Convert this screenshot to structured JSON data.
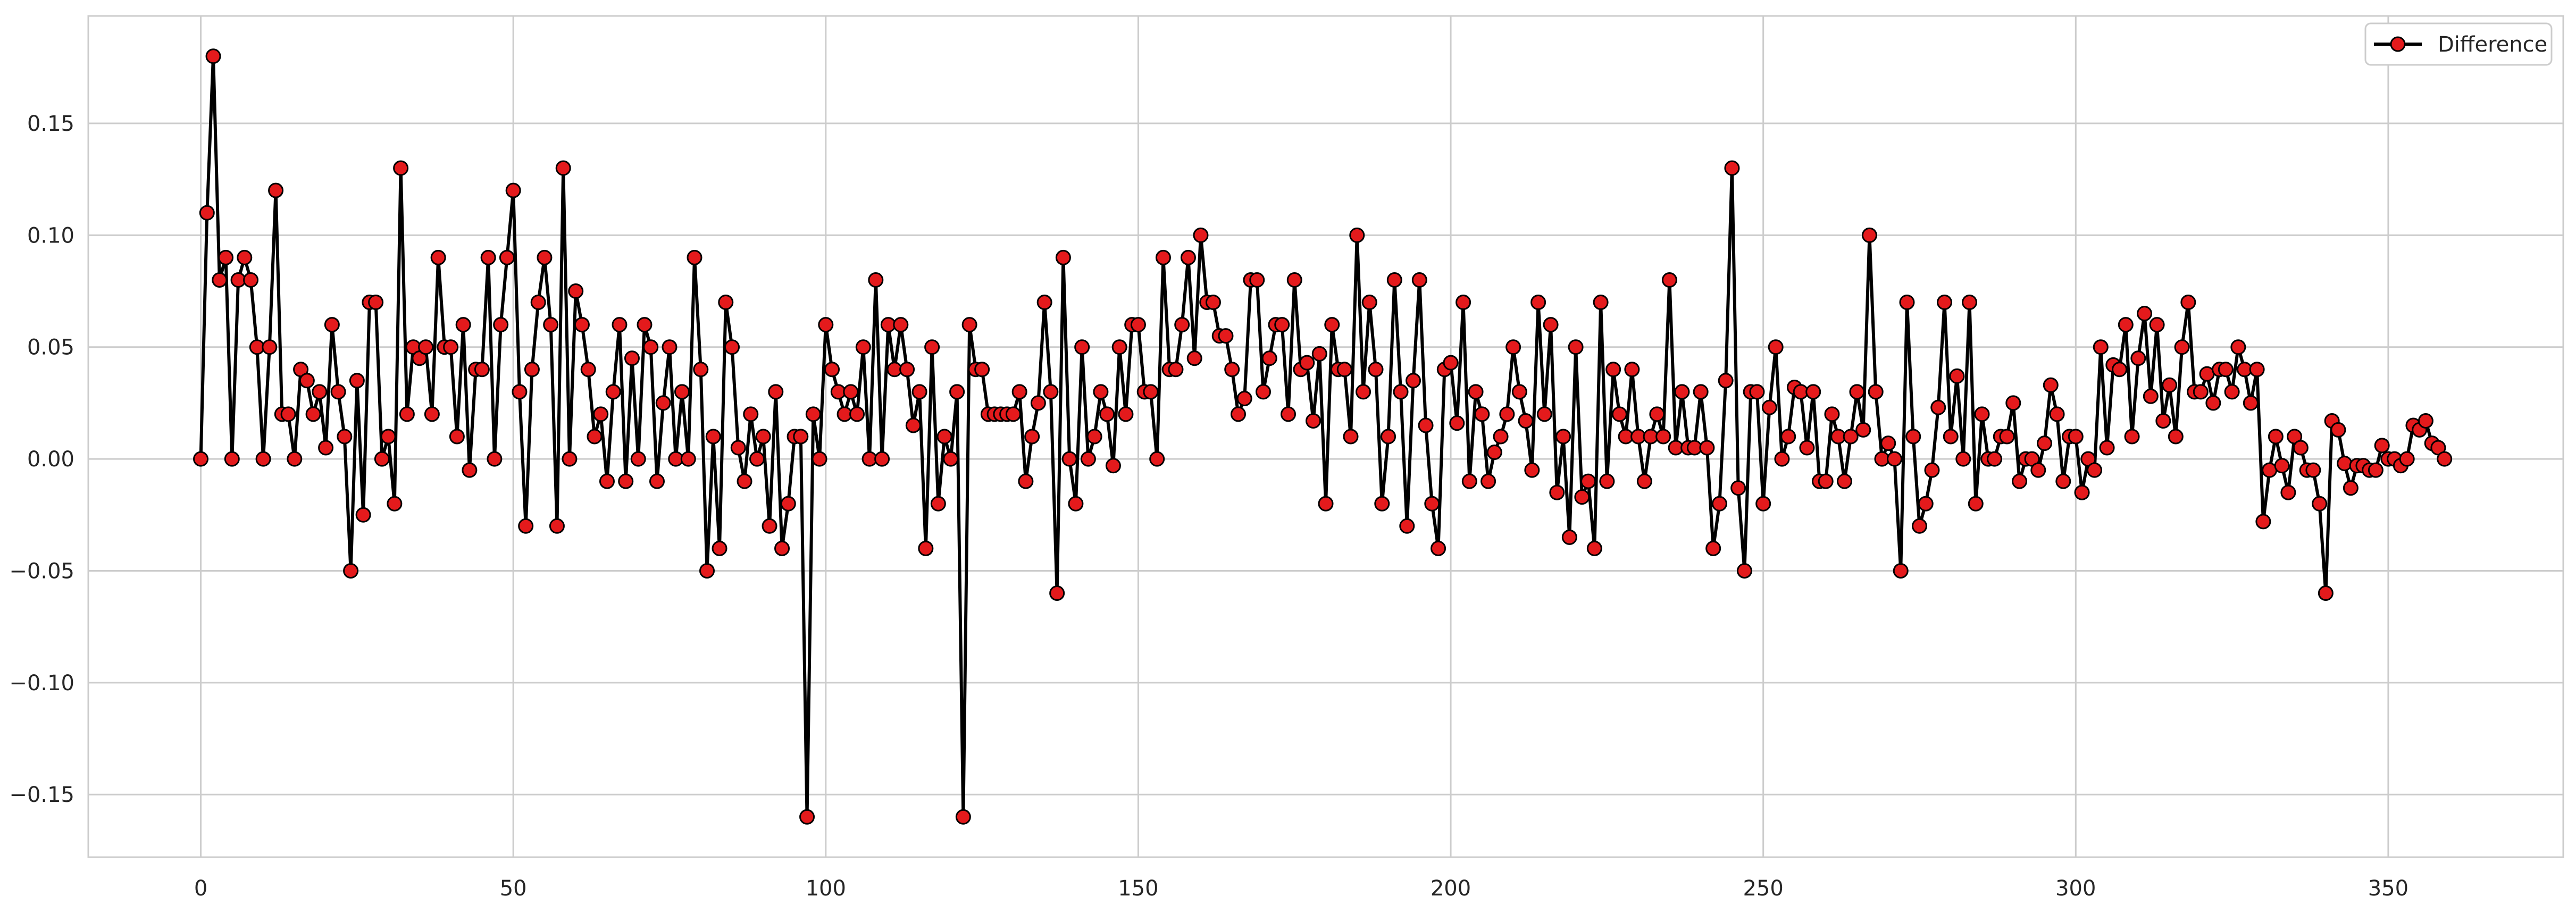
{
  "chart_data": {
    "type": "line",
    "title": "",
    "xlabel": "",
    "ylabel": "",
    "xlim": [
      -18,
      378
    ],
    "ylim": [
      -0.178,
      0.198
    ],
    "grid": true,
    "legend": {
      "position": "top-right",
      "entries": [
        "Difference"
      ]
    },
    "x_ticks": [
      0,
      50,
      100,
      150,
      200,
      250,
      300,
      350
    ],
    "y_ticks": [
      0.15,
      0.1,
      0.05,
      0.0,
      -0.05,
      -0.1,
      -0.15
    ],
    "x_tick_labels": [
      "0",
      "50",
      "100",
      "150",
      "200",
      "250",
      "300",
      "350"
    ],
    "y_tick_labels": [
      "0.15",
      "0.10",
      "0.05",
      "0.00",
      "−0.05",
      "−0.10",
      "−0.15"
    ],
    "series": [
      {
        "name": "Difference",
        "line_color": "#000000",
        "marker_color": "#e41a1c",
        "marker_edge_color": "#000000",
        "x": [
          0,
          1,
          2,
          3,
          4,
          5,
          6,
          7,
          8,
          9,
          10,
          11,
          12,
          13,
          14,
          15,
          16,
          17,
          18,
          19,
          20,
          21,
          22,
          23,
          24,
          25,
          26,
          27,
          28,
          29,
          30,
          31,
          32,
          33,
          34,
          35,
          36,
          37,
          38,
          39,
          40,
          41,
          42,
          43,
          44,
          45,
          46,
          47,
          48,
          49,
          50,
          51,
          52,
          53,
          54,
          55,
          56,
          57,
          58,
          59,
          60,
          61,
          62,
          63,
          64,
          65,
          66,
          67,
          68,
          69,
          70,
          71,
          72,
          73,
          74,
          75,
          76,
          77,
          78,
          79,
          80,
          81,
          82,
          83,
          84,
          85,
          86,
          87,
          88,
          89,
          90,
          91,
          92,
          93,
          94,
          95,
          96,
          97,
          98,
          99,
          100,
          101,
          102,
          103,
          104,
          105,
          106,
          107,
          108,
          109,
          110,
          111,
          112,
          113,
          114,
          115,
          116,
          117,
          118,
          119,
          120,
          121,
          122,
          123,
          124,
          125,
          126,
          127,
          128,
          129,
          130,
          131,
          132,
          133,
          134,
          135,
          136,
          137,
          138,
          139,
          140,
          141,
          142,
          143,
          144,
          145,
          146,
          147,
          148,
          149,
          150,
          151,
          152,
          153,
          154,
          155,
          156,
          157,
          158,
          159,
          160,
          161,
          162,
          163,
          164,
          165,
          166,
          167,
          168,
          169,
          170,
          171,
          172,
          173,
          174,
          175,
          176,
          177,
          178,
          179,
          180,
          181,
          182,
          183,
          184,
          185,
          186,
          187,
          188,
          189,
          190,
          191,
          192,
          193,
          194,
          195,
          196,
          197,
          198,
          199,
          200,
          201,
          202,
          203,
          204,
          205,
          206,
          207,
          208,
          209,
          210,
          211,
          212,
          213,
          214,
          215,
          216,
          217,
          218,
          219,
          220,
          221,
          222,
          223,
          224,
          225,
          226,
          227,
          228,
          229,
          230,
          231,
          232,
          233,
          234,
          235,
          236,
          237,
          238,
          239,
          240,
          241,
          242,
          243,
          244,
          245,
          246,
          247,
          248,
          249,
          250,
          251,
          252,
          253,
          254,
          255,
          256,
          257,
          258,
          259,
          260,
          261,
          262,
          263,
          264,
          265,
          266,
          267,
          268,
          269,
          270,
          271,
          272,
          273,
          274,
          275,
          276,
          277,
          278,
          279,
          280,
          281,
          282,
          283,
          284,
          285,
          286,
          287,
          288,
          289,
          290,
          291,
          292,
          293,
          294,
          295,
          296,
          297,
          298,
          299,
          300,
          301,
          302,
          303,
          304,
          305,
          306,
          307,
          308,
          309,
          310,
          311,
          312,
          313,
          314,
          315,
          316,
          317,
          318,
          319,
          320,
          321,
          322,
          323,
          324,
          325,
          326,
          327,
          328,
          329,
          330,
          331,
          332,
          333,
          334,
          335,
          336,
          337,
          338,
          339,
          340,
          341,
          342,
          343,
          344,
          345,
          346,
          347,
          348,
          349,
          350,
          351,
          352,
          353,
          354,
          355,
          356,
          357,
          358,
          359
        ],
        "y": [
          0.0,
          0.11,
          0.18,
          0.08,
          0.09,
          0.0,
          0.08,
          0.09,
          0.08,
          0.05,
          0.0,
          0.05,
          0.12,
          0.02,
          0.02,
          0.0,
          0.04,
          0.035,
          0.02,
          0.03,
          0.005,
          0.06,
          0.03,
          0.01,
          -0.05,
          0.035,
          -0.025,
          0.07,
          0.07,
          0.0,
          0.01,
          -0.02,
          0.13,
          0.02,
          0.05,
          0.045,
          0.05,
          0.02,
          0.09,
          0.05,
          0.05,
          0.01,
          0.06,
          -0.005,
          0.04,
          0.04,
          0.09,
          0.0,
          0.06,
          0.09,
          0.12,
          0.03,
          -0.03,
          0.04,
          0.07,
          0.09,
          0.06,
          -0.03,
          0.13,
          0.0,
          0.075,
          0.06,
          0.04,
          0.01,
          0.02,
          -0.01,
          0.03,
          0.06,
          -0.01,
          0.045,
          0.0,
          0.06,
          0.05,
          -0.01,
          0.025,
          0.05,
          0.0,
          0.03,
          0.0,
          0.09,
          0.04,
          -0.05,
          0.01,
          -0.04,
          0.07,
          0.05,
          0.005,
          -0.01,
          0.02,
          0.0,
          0.01,
          -0.03,
          0.03,
          -0.04,
          -0.02,
          0.01,
          0.01,
          -0.16,
          0.02,
          0.0,
          0.06,
          0.04,
          0.03,
          0.02,
          0.03,
          0.02,
          0.05,
          0.0,
          0.08,
          0.0,
          0.06,
          0.04,
          0.06,
          0.04,
          0.015,
          0.03,
          -0.04,
          0.05,
          -0.02,
          0.01,
          0.0,
          0.03,
          -0.16,
          0.06,
          0.04,
          0.04,
          0.02,
          0.02,
          0.02,
          0.02,
          0.02,
          0.03,
          -0.01,
          0.01,
          0.025,
          0.07,
          0.03,
          -0.06,
          0.09,
          0.0,
          -0.02,
          0.05,
          0.0,
          0.01,
          0.03,
          0.02,
          -0.003,
          0.05,
          0.02,
          0.06,
          0.06,
          0.03,
          0.03,
          0.0,
          0.09,
          0.04,
          0.04,
          0.06,
          0.09,
          0.045,
          0.1,
          0.07,
          0.07,
          0.055,
          0.055,
          0.04,
          0.02,
          0.027,
          0.08,
          0.08,
          0.03,
          0.045,
          0.06,
          0.06,
          0.02,
          0.08,
          0.04,
          0.043,
          0.017,
          0.047,
          -0.02,
          0.06,
          0.04,
          0.04,
          0.01,
          0.1,
          0.03,
          0.07,
          0.04,
          -0.02,
          0.01,
          0.08,
          0.03,
          -0.03,
          0.035,
          0.08,
          0.015,
          -0.02,
          -0.04,
          0.04,
          0.043,
          0.016,
          0.07,
          -0.01,
          0.03,
          0.02,
          -0.01,
          0.003,
          0.01,
          0.02,
          0.05,
          0.03,
          0.017,
          -0.005,
          0.07,
          0.02,
          0.06,
          -0.015,
          0.01,
          -0.035,
          0.05,
          -0.017,
          -0.01,
          -0.04,
          0.07,
          -0.01,
          0.04,
          0.02,
          0.01,
          0.04,
          0.01,
          -0.01,
          0.01,
          0.02,
          0.01,
          0.08,
          0.005,
          0.03,
          0.005,
          0.005,
          0.03,
          0.005,
          -0.04,
          -0.02,
          0.035,
          0.13,
          -0.013,
          -0.05,
          0.03,
          0.03,
          -0.02,
          0.023,
          0.05,
          0.0,
          0.01,
          0.032,
          0.03,
          0.005,
          0.03,
          -0.01,
          -0.01,
          0.02,
          0.01,
          -0.01,
          0.01,
          0.03,
          0.013,
          0.1,
          0.03,
          0.0,
          0.007,
          0.0,
          -0.05,
          0.07,
          0.01,
          -0.03,
          -0.02,
          -0.005,
          0.023,
          0.07,
          0.01,
          0.037,
          0.0,
          0.07,
          -0.02,
          0.02,
          0.0,
          0.0,
          0.01,
          0.01,
          0.025,
          -0.01,
          0.0,
          0.0,
          -0.005,
          0.007,
          0.033,
          0.02,
          -0.01,
          0.01,
          0.01,
          -0.015,
          0.0,
          -0.005,
          0.05,
          0.005,
          0.042,
          0.04,
          0.06,
          0.01,
          0.045,
          0.065,
          0.028,
          0.06,
          0.017,
          0.033,
          0.01,
          0.05,
          0.07,
          0.03,
          0.03,
          0.038,
          0.025,
          0.04,
          0.04,
          0.03,
          0.05,
          0.04,
          0.025,
          0.04,
          -0.028,
          -0.005,
          0.01,
          -0.003,
          -0.015,
          0.01,
          0.005,
          -0.005,
          -0.005,
          -0.02,
          -0.06,
          0.017,
          0.013,
          -0.002,
          -0.013,
          -0.003,
          -0.003,
          -0.005,
          -0.005,
          0.006,
          0.0,
          0.0,
          -0.003,
          0.0,
          0.015,
          0.013,
          0.017,
          0.007,
          0.005,
          0.0
        ]
      }
    ]
  }
}
